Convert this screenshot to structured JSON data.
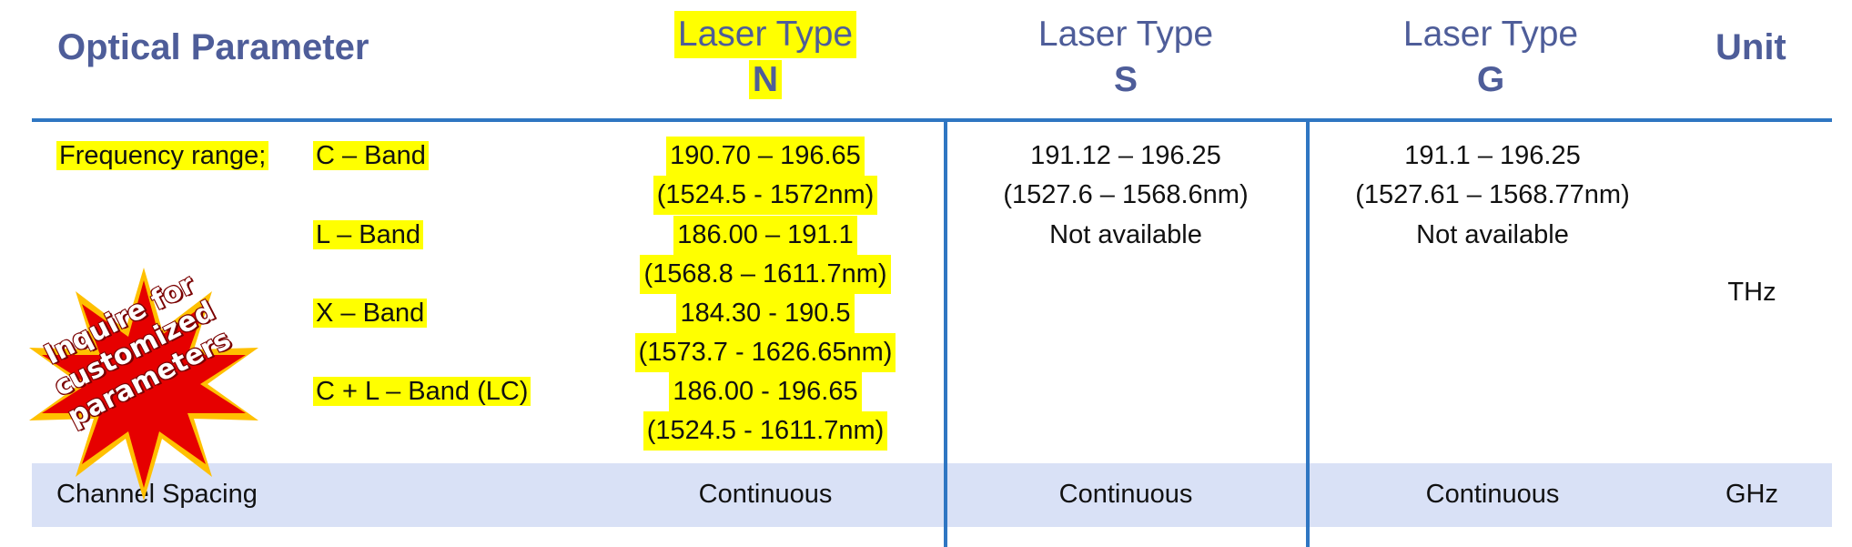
{
  "header": {
    "param_label": "Optical Parameter",
    "laser_n": {
      "line1": "Laser Type",
      "line2": "N"
    },
    "laser_s": {
      "line1": "Laser Type",
      "line2": "S"
    },
    "laser_g": {
      "line1": "Laser Type",
      "line2": "G"
    },
    "unit_label": "Unit"
  },
  "frequency": {
    "label": "Frequency range;",
    "bands": [
      {
        "name": "C – Band",
        "n_range": "190.70 – 196.65",
        "n_nm": "(1524.5 - 1572nm)",
        "s_range": "191.12 – 196.25",
        "s_nm": "(1527.6 – 1568.6nm)",
        "g_range": "191.1 – 196.25",
        "g_nm": "(1527.61 – 1568.77nm)"
      },
      {
        "name": "L – Band",
        "n_range": "186.00 – 191.1",
        "n_nm": "(1568.8 – 1611.7nm)",
        "s_range": "Not available",
        "g_range": "Not available"
      },
      {
        "name": "X – Band",
        "n_range": "184.30 - 190.5",
        "n_nm": "(1573.7 - 1626.65nm)"
      },
      {
        "name": "C + L – Band (LC)",
        "n_range": "186.00 - 196.65",
        "n_nm": "(1524.5 - 1611.7nm)"
      }
    ],
    "unit": "THz"
  },
  "channel_spacing": {
    "label": "Channel Spacing",
    "n": "Continuous",
    "s": "Continuous",
    "g": "Continuous",
    "unit": "GHz"
  },
  "badge": {
    "text": "Inquire for customized parameters"
  },
  "colors": {
    "header_text": "#4e5d99",
    "rule": "#2f76c2",
    "highlight": "#ffff00",
    "band_row": "#d9e1f6",
    "badge": "#e60000"
  }
}
